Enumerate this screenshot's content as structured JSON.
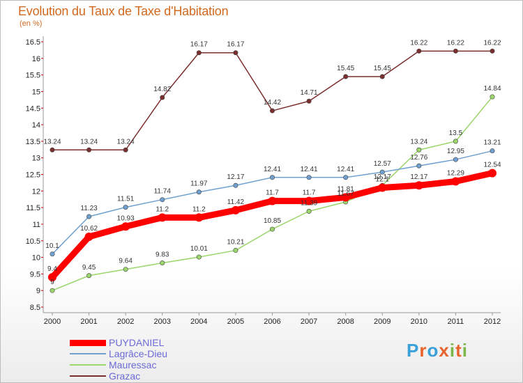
{
  "chart_data": {
    "type": "line",
    "title": "Evolution du Taux de Taxe d'Habitation",
    "unit_label": "(en %)",
    "x": [
      "2000",
      "2001",
      "2002",
      "2003",
      "2004",
      "2005",
      "2006",
      "2007",
      "2008",
      "2009",
      "2010",
      "2011",
      "2012"
    ],
    "ylim": [
      8.5,
      16.5
    ],
    "yticks": [
      "8.5",
      "9",
      "9.5",
      "10",
      "10.5",
      "11",
      "11.5",
      "12",
      "12.5",
      "13",
      "13.5",
      "14",
      "14.5",
      "15",
      "15.5",
      "16",
      "16.5"
    ],
    "grid": false,
    "legend_position": "bottom-left",
    "series": [
      {
        "name": "PUYDANIEL",
        "color": "#ff0000",
        "values": [
          9.4,
          10.62,
          10.93,
          11.2,
          11.2,
          11.42,
          11.7,
          11.7,
          11.81,
          12.1,
          12.17,
          12.29,
          12.54
        ],
        "labels": [
          "9.4",
          "10.62",
          "10.93",
          "11.2",
          "11.2",
          "11.42",
          "11.7",
          "11.7",
          "11.81",
          "12.1",
          "12.17",
          "12.29",
          "12.54"
        ]
      },
      {
        "name": "Lagrâce-Dieu",
        "color": "#6fa0d0",
        "values": [
          10.1,
          11.23,
          11.51,
          11.74,
          11.97,
          12.17,
          12.41,
          12.41,
          12.41,
          12.57,
          12.76,
          12.95,
          13.21
        ],
        "labels": [
          "10.1",
          "11.23",
          "11.51",
          "11.74",
          "11.97",
          "12.17",
          "12.41",
          "12.41",
          "12.41",
          "12.57",
          "12.76",
          "12.95",
          "13.21"
        ]
      },
      {
        "name": "Mauressac",
        "color": "#9ad66b",
        "values": [
          9.0,
          9.45,
          9.64,
          9.83,
          10.01,
          10.21,
          10.85,
          11.39,
          11.67,
          12.17,
          13.24,
          13.5,
          14.84
        ],
        "labels": [
          "9",
          "9.45",
          "9.64",
          "9.83",
          "10.01",
          "10.21",
          "10.85",
          "11.39",
          "11.67",
          "12.17",
          "13.24",
          "13.5",
          "14.84"
        ]
      },
      {
        "name": "Grazac",
        "color": "#7b2e2e",
        "values": [
          13.24,
          13.24,
          13.24,
          14.82,
          16.17,
          16.17,
          14.42,
          14.71,
          15.45,
          15.45,
          16.22,
          16.22,
          16.22
        ],
        "labels": [
          "13.24",
          "13.24",
          "13.24",
          "14.82",
          "16.17",
          "16.17",
          "14.42",
          "14.71",
          "15.45",
          "15.45",
          "16.22",
          "16.22",
          "16.22"
        ]
      }
    ]
  },
  "logo": {
    "letters": [
      "P",
      "r",
      "o",
      "x",
      "i",
      "t",
      "i"
    ],
    "colors": [
      "#3aa0d8",
      "#e8642c",
      "#3aa0d8",
      "#e8642c",
      "#7ab648",
      "#e8642c",
      "#7ab648"
    ]
  }
}
